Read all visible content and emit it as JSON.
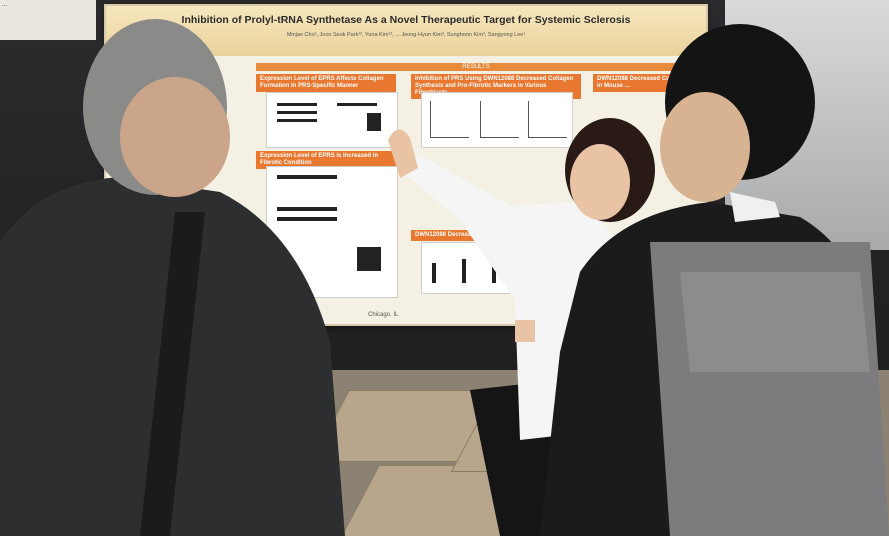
{
  "scene": {
    "description_free": true
  },
  "small_poster": {
    "text": "..."
  },
  "poster": {
    "title": "Inhibition of Prolyl-tRNA Synthetase As a Novel Therapeutic Target for Systemic Sclerosis",
    "authors": "Minjae Cho¹, Joon Seok Park¹², Yuna Kim¹², ... Jeong-Hyun Kim³, Sunghoon Kim³, Sangyong Lee¹",
    "results_label": "RESULTS",
    "sections": [
      "Expression Level of EPRS Affects Collagen Formation in PRS-Specific Manner",
      "Inhibition of PRS Using DWN12088 Decreased Collagen Synthesis and Pro-Fibrotic Markers in Various Fibroblasts",
      "DWN12088 Decreased Collagen in Mouse ...",
      "Expression Level of EPRS is Increased in Fibrotic Condition",
      "DWN12088 Decreased Collagen ... Organoid Model"
    ],
    "location": "Chicago, IL"
  },
  "colors": {
    "poster_header": "#e9d29b",
    "section_bar": "#e8772f"
  }
}
